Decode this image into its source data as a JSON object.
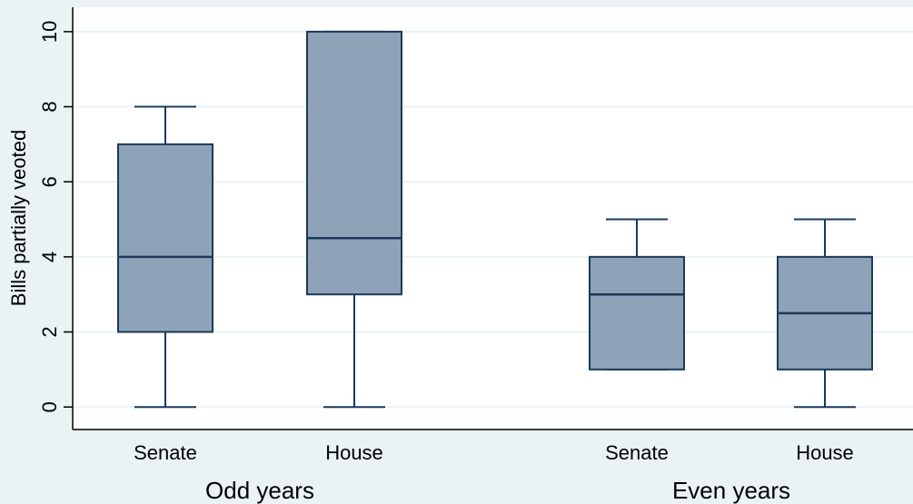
{
  "chart_data": {
    "type": "box",
    "ylabel": "Bills partially veoted",
    "ylim": [
      -0.6,
      10.65
    ],
    "yticks": [
      0,
      2,
      4,
      6,
      8,
      10
    ],
    "grid": true,
    "groups": [
      {
        "label": "Odd years",
        "boxes": [
          {
            "label": "Senate",
            "min": 0,
            "q1": 2,
            "median": 4,
            "q3": 7,
            "max": 8
          },
          {
            "label": "House",
            "min": 0,
            "q1": 3,
            "median": 4.5,
            "q3": 10,
            "max": 10
          }
        ]
      },
      {
        "label": "Even years",
        "boxes": [
          {
            "label": "Senate",
            "min": 1,
            "q1": 1,
            "median": 3,
            "q3": 4,
            "max": 5
          },
          {
            "label": "House",
            "min": 0,
            "q1": 1,
            "median": 2.5,
            "q3": 4,
            "max": 5
          }
        ]
      }
    ],
    "colors": {
      "box_fill": "#8ea3b8",
      "box_stroke": "#1a3a5c",
      "plot_background": "#ffffff",
      "outer_background": "#eaf2f3",
      "grid": "#eaf2f3"
    }
  }
}
